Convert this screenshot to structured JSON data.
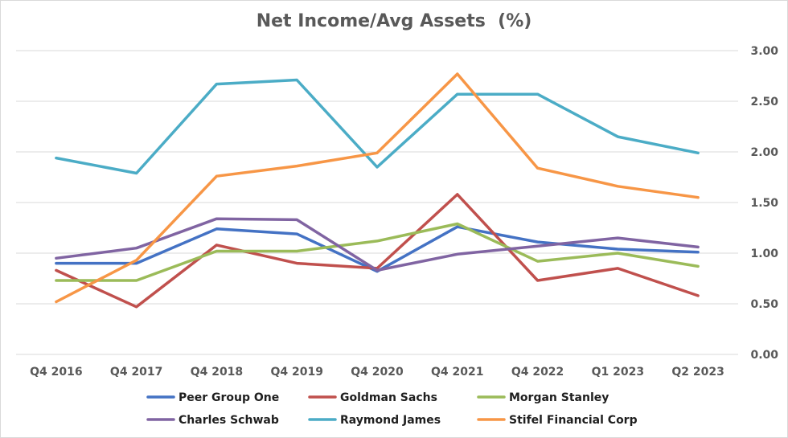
{
  "chart_data": {
    "type": "line",
    "title": "Net Income/Avg Assets  (%)",
    "xlabel": "",
    "ylabel": "",
    "categories": [
      "Q4 2016",
      "Q4 2017",
      "Q4 2018",
      "Q4 2019",
      "Q4 2020",
      "Q4 2021",
      "Q4 2022",
      "Q1 2023",
      "Q2 2023"
    ],
    "ylim": [
      0,
      3
    ],
    "yticks": [
      "0.00",
      "0.50",
      "1.00",
      "1.50",
      "2.00",
      "2.50",
      "3.00"
    ],
    "y_axis_side": "right",
    "grid": true,
    "legend_position": "bottom",
    "series": [
      {
        "name": "Peer Group One",
        "color": "#4472c4",
        "values": [
          0.9,
          0.9,
          1.24,
          1.19,
          0.82,
          1.26,
          1.11,
          1.04,
          1.01
        ]
      },
      {
        "name": "Goldman Sachs",
        "color": "#c0504d",
        "values": [
          0.83,
          0.47,
          1.08,
          0.9,
          0.85,
          1.58,
          0.73,
          0.85,
          0.58
        ]
      },
      {
        "name": "Morgan Stanley",
        "color": "#9bbb59",
        "values": [
          0.73,
          0.73,
          1.02,
          1.02,
          1.12,
          1.29,
          0.92,
          1.0,
          0.87
        ]
      },
      {
        "name": "Charles Schwab",
        "color": "#8064a2",
        "values": [
          0.95,
          1.05,
          1.34,
          1.33,
          0.83,
          0.99,
          1.07,
          1.15,
          1.06
        ]
      },
      {
        "name": "Raymond James",
        "color": "#4bacc6",
        "values": [
          1.94,
          1.79,
          2.67,
          2.71,
          1.85,
          2.57,
          2.57,
          2.15,
          1.99
        ]
      },
      {
        "name": "Stifel Financial Corp",
        "color": "#f79646",
        "values": [
          0.52,
          0.93,
          1.76,
          1.86,
          1.99,
          2.77,
          1.84,
          1.66,
          1.55
        ]
      }
    ]
  }
}
